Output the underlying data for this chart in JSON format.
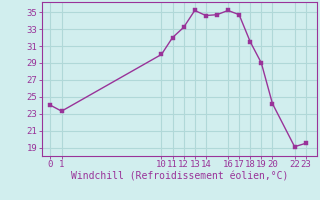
{
  "x": [
    0,
    1,
    10,
    11,
    12,
    13,
    14,
    15,
    16,
    17,
    18,
    19,
    20,
    22,
    23
  ],
  "y": [
    24.0,
    23.3,
    30.0,
    32.0,
    33.2,
    35.2,
    34.6,
    34.7,
    35.2,
    34.7,
    31.5,
    29.0,
    24.2,
    19.1,
    19.5
  ],
  "xticks": [
    0,
    1,
    10,
    11,
    12,
    13,
    14,
    16,
    17,
    18,
    19,
    20,
    22,
    23
  ],
  "xtick_labels": [
    "0",
    "1",
    "10",
    "11",
    "12",
    "13",
    "14",
    "16",
    "17",
    "18",
    "19",
    "20",
    "22",
    "23"
  ],
  "yticks": [
    19,
    21,
    23,
    25,
    27,
    29,
    31,
    33,
    35
  ],
  "ylim": [
    18.0,
    36.2
  ],
  "xlim": [
    -0.8,
    24.0
  ],
  "xlabel": "Windchill (Refroidissement éolien,°C)",
  "line_color": "#993399",
  "marker_color": "#993399",
  "bg_color": "#d1eeee",
  "grid_color": "#b0d8d8",
  "text_color": "#993399",
  "font_size": 6.5,
  "xlabel_font_size": 7.0
}
